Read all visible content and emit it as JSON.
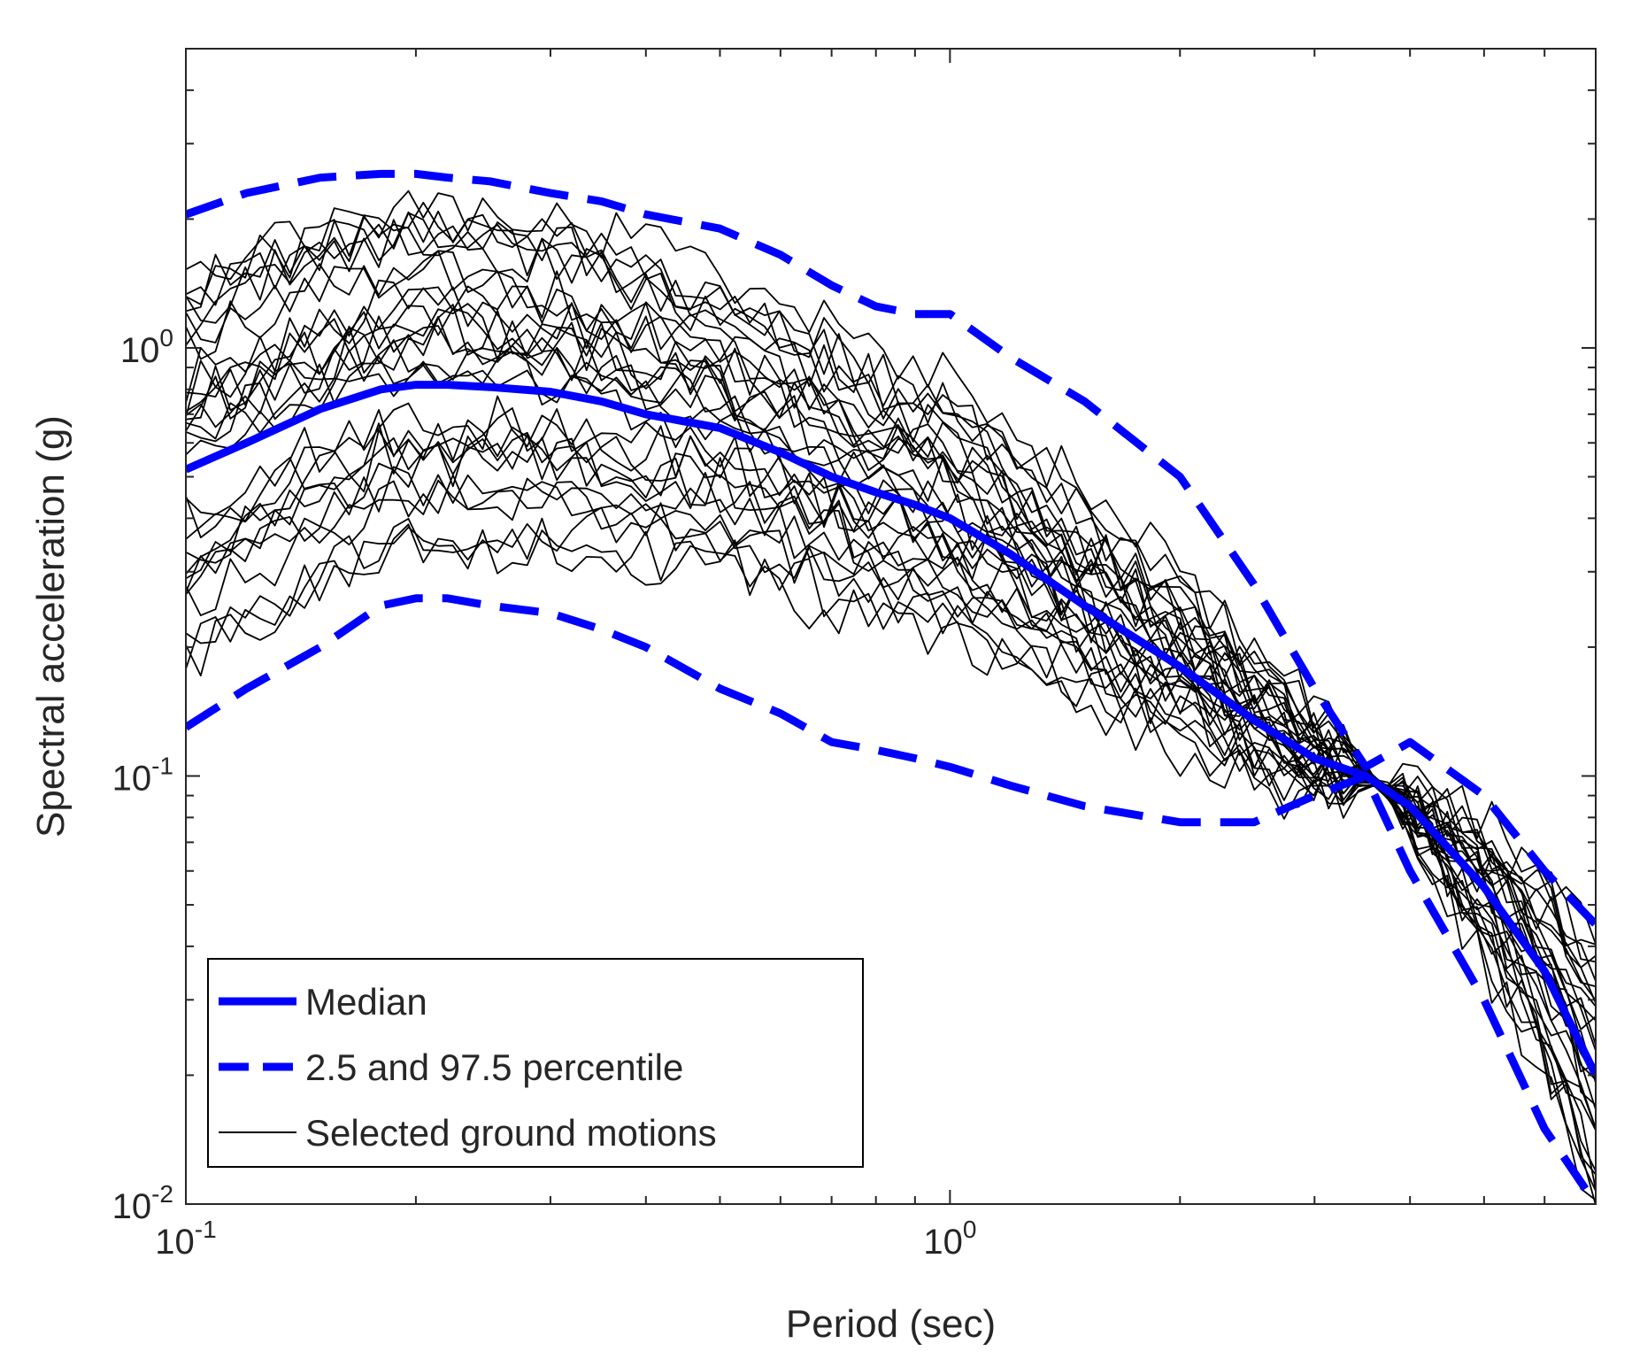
{
  "chart_data": {
    "type": "line",
    "title": "",
    "xlabel": "Period (sec)",
    "ylabel": "Spectral acceleration (g)",
    "xscale": "log",
    "yscale": "log",
    "xlim": [
      0.1,
      7
    ],
    "ylim": [
      0.01,
      5
    ],
    "grid": false,
    "x_ticks": [
      {
        "value": 0.1,
        "base": "10",
        "exp": "-1"
      },
      {
        "value": 1,
        "base": "10",
        "exp": "0"
      }
    ],
    "y_ticks": [
      {
        "value": 0.01,
        "base": "10",
        "exp": "-2"
      },
      {
        "value": 0.1,
        "base": "10",
        "exp": "-1"
      },
      {
        "value": 1,
        "base": "10",
        "exp": "0"
      }
    ],
    "colors": {
      "median": "#0000ff",
      "percentile": "#0000ff",
      "motions": "#000000",
      "axes": "#262626"
    },
    "legend": {
      "placement": "bottom-left",
      "entries": [
        "Median",
        "2.5 and 97.5 percentile",
        "Selected ground motions"
      ]
    },
    "periods": [
      0.1,
      0.12,
      0.15,
      0.18,
      0.2,
      0.22,
      0.25,
      0.3,
      0.35,
      0.4,
      0.5,
      0.6,
      0.7,
      0.8,
      0.9,
      1.0,
      1.2,
      1.5,
      2.0,
      2.5,
      3.0,
      3.5,
      4.0,
      5.0,
      6.0,
      7.0
    ],
    "series": [
      {
        "name": "Median",
        "values": [
          0.52,
          0.6,
          0.72,
          0.8,
          0.82,
          0.82,
          0.81,
          0.79,
          0.75,
          0.7,
          0.65,
          0.57,
          0.5,
          0.46,
          0.43,
          0.4,
          0.33,
          0.25,
          0.18,
          0.135,
          0.11,
          0.1,
          0.085,
          0.055,
          0.035,
          0.02
        ]
      },
      {
        "name": "97.5 percentile",
        "values": [
          2.05,
          2.3,
          2.5,
          2.55,
          2.55,
          2.5,
          2.45,
          2.3,
          2.2,
          2.05,
          1.9,
          1.65,
          1.4,
          1.25,
          1.2,
          1.2,
          0.95,
          0.75,
          0.5,
          0.28,
          0.16,
          0.105,
          0.12,
          0.09,
          0.06,
          0.045
        ]
      },
      {
        "name": "2.5 percentile",
        "values": [
          0.13,
          0.16,
          0.2,
          0.25,
          0.26,
          0.26,
          0.25,
          0.24,
          0.22,
          0.2,
          0.16,
          0.14,
          0.12,
          0.115,
          0.11,
          0.105,
          0.095,
          0.085,
          0.078,
          0.078,
          0.09,
          0.1,
          0.06,
          0.03,
          0.015,
          0.01
        ]
      }
    ],
    "motions": {
      "name": "Selected ground motions",
      "count": 30,
      "description_note": "30 individual response spectra scattered around the median, converging near 0.1 g at about 3.6 sec"
    }
  }
}
